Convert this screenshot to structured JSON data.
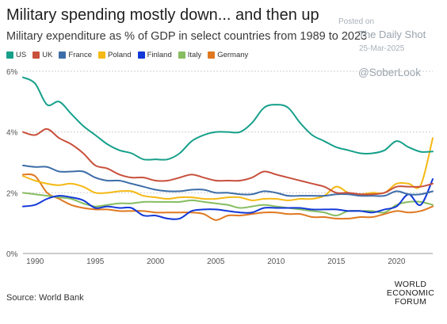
{
  "header": {
    "title": "Military spending mostly down... and then up",
    "subtitle": "Military expenditure as % of GDP in select countries from 1989 to 2023"
  },
  "watermark": {
    "posted": "Posted on",
    "source": "The Daily Shot",
    "date": "25-Mar-2025",
    "handle": "@SoberLook"
  },
  "footer": {
    "source": "Source: World Bank",
    "logo_lines": [
      "WORLD",
      "ECONOMIC",
      "FORUM"
    ]
  },
  "chart_data": {
    "type": "line",
    "title": "Military spending mostly down... and then up",
    "subtitle": "Military expenditure as % of GDP in select countries from 1989 to 2023",
    "xlabel": "",
    "ylabel": "",
    "xlim": [
      1989,
      2023
    ],
    "ylim": [
      0,
      6
    ],
    "x_ticks": [
      1990,
      1995,
      2000,
      2005,
      2010,
      2015,
      2020
    ],
    "x_tick_labels": [
      "1990",
      "1995",
      "2000",
      "2005",
      "2010",
      "2015",
      "2020"
    ],
    "y_ticks": [
      0,
      2,
      4,
      6
    ],
    "y_tick_labels": [
      "0%",
      "2%",
      "4%",
      "6%"
    ],
    "grid": "horizontal",
    "legend_position": "top-left",
    "x": [
      1989,
      1990,
      1991,
      1992,
      1993,
      1994,
      1995,
      1996,
      1997,
      1998,
      1999,
      2000,
      2001,
      2002,
      2003,
      2004,
      2005,
      2006,
      2007,
      2008,
      2009,
      2010,
      2011,
      2012,
      2013,
      2014,
      2015,
      2016,
      2017,
      2018,
      2019,
      2020,
      2021,
      2022,
      2023
    ],
    "series": [
      {
        "name": "US",
        "color": "#16a08a",
        "values": [
          5.8,
          5.6,
          4.9,
          5.0,
          4.6,
          4.2,
          3.9,
          3.6,
          3.4,
          3.3,
          3.1,
          3.1,
          3.1,
          3.3,
          3.7,
          3.9,
          4.0,
          4.0,
          4.0,
          4.3,
          4.8,
          4.9,
          4.8,
          4.3,
          3.9,
          3.7,
          3.5,
          3.4,
          3.3,
          3.3,
          3.4,
          3.7,
          3.5,
          3.35,
          3.36
        ]
      },
      {
        "name": "UK",
        "color": "#c8503c",
        "values": [
          4.0,
          3.9,
          4.1,
          3.8,
          3.6,
          3.3,
          2.9,
          2.8,
          2.6,
          2.5,
          2.5,
          2.4,
          2.4,
          2.5,
          2.6,
          2.5,
          2.4,
          2.4,
          2.4,
          2.5,
          2.7,
          2.6,
          2.5,
          2.4,
          2.3,
          2.2,
          2.0,
          2.0,
          1.95,
          1.95,
          2.0,
          2.2,
          2.2,
          2.2,
          2.3
        ]
      },
      {
        "name": "France",
        "color": "#3d6da8",
        "values": [
          2.9,
          2.85,
          2.85,
          2.7,
          2.7,
          2.7,
          2.5,
          2.4,
          2.4,
          2.3,
          2.2,
          2.1,
          2.05,
          2.05,
          2.1,
          2.1,
          2.0,
          2.0,
          1.95,
          1.95,
          2.05,
          2.0,
          1.9,
          1.9,
          1.9,
          1.9,
          1.95,
          1.95,
          1.9,
          1.9,
          1.9,
          2.05,
          1.95,
          1.95,
          2.05
        ]
      },
      {
        "name": "Poland",
        "color": "#f5b915",
        "values": [
          2.55,
          2.4,
          2.3,
          2.25,
          2.3,
          2.2,
          2.0,
          2.0,
          2.05,
          2.05,
          1.9,
          1.85,
          1.8,
          1.85,
          1.85,
          1.8,
          1.8,
          1.85,
          1.85,
          1.75,
          1.8,
          1.8,
          1.75,
          1.8,
          1.8,
          1.9,
          2.2,
          2.0,
          1.95,
          2.0,
          2.0,
          2.3,
          2.3,
          2.25,
          3.8
        ]
      },
      {
        "name": "Finland",
        "color": "#1238d8",
        "values": [
          1.55,
          1.6,
          1.8,
          1.9,
          1.85,
          1.75,
          1.5,
          1.55,
          1.5,
          1.5,
          1.25,
          1.25,
          1.15,
          1.15,
          1.4,
          1.45,
          1.45,
          1.4,
          1.35,
          1.35,
          1.5,
          1.5,
          1.5,
          1.5,
          1.45,
          1.45,
          1.45,
          1.4,
          1.4,
          1.35,
          1.45,
          1.55,
          1.95,
          1.6,
          2.45
        ]
      },
      {
        "name": "Italy",
        "color": "#86bd60",
        "values": [
          2.0,
          1.95,
          1.9,
          1.85,
          1.8,
          1.65,
          1.55,
          1.6,
          1.65,
          1.65,
          1.7,
          1.7,
          1.7,
          1.7,
          1.75,
          1.7,
          1.65,
          1.6,
          1.5,
          1.55,
          1.6,
          1.55,
          1.5,
          1.45,
          1.4,
          1.35,
          1.25,
          1.4,
          1.4,
          1.4,
          1.35,
          1.6,
          1.7,
          1.7,
          1.6
        ]
      },
      {
        "name": "Germany",
        "color": "#e07820",
        "values": [
          2.6,
          2.55,
          2.0,
          1.8,
          1.6,
          1.5,
          1.45,
          1.45,
          1.4,
          1.4,
          1.4,
          1.35,
          1.35,
          1.35,
          1.35,
          1.3,
          1.1,
          1.25,
          1.25,
          1.3,
          1.35,
          1.35,
          1.3,
          1.3,
          1.2,
          1.2,
          1.15,
          1.15,
          1.2,
          1.2,
          1.3,
          1.4,
          1.35,
          1.4,
          1.55
        ]
      }
    ]
  }
}
